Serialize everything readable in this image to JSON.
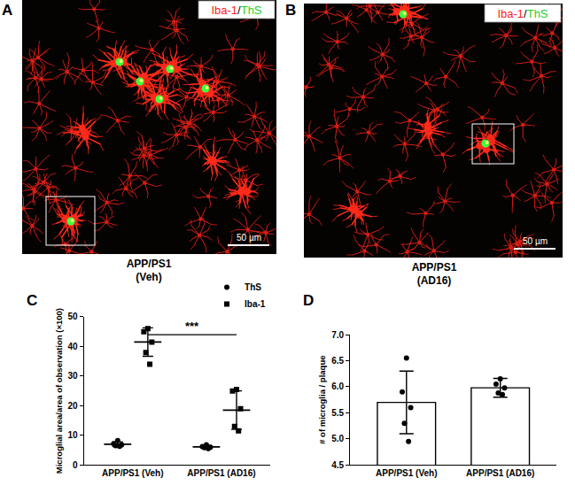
{
  "panels": [
    {
      "label": "A",
      "stain_label": [
        {
          "text": "Iba-1",
          "color": "#ff1a1a"
        },
        {
          "text": "/",
          "color": "#000000"
        },
        {
          "text": "ThS",
          "color": "#1fd11f"
        }
      ],
      "scale_bar": "50 µm",
      "caption": [
        "APP/PS1",
        "(Veh)"
      ]
    },
    {
      "label": "B",
      "stain_label": [
        {
          "text": "Iba-1",
          "color": "#ff1a1a"
        },
        {
          "text": "/",
          "color": "#000000"
        },
        {
          "text": "ThS",
          "color": "#1fd11f"
        }
      ],
      "scale_bar": "50 µm",
      "caption": [
        "APP/PS1",
        "(AD16)"
      ]
    }
  ],
  "chart_data": [
    {
      "panel": "C",
      "type": "scatter",
      "y_label": "Microglial area/area of observation (×100)",
      "categories": [
        "APP/PS1 (Veh)",
        "APP/PS1 (AD16)"
      ],
      "series": [
        {
          "name": "ThS",
          "marker": "circle",
          "color": "#000000",
          "values": [
            [
              8.2,
              7.2,
              6.8,
              6.5,
              6.3
            ],
            [
              6.8,
              6.2,
              6.0,
              5.8,
              5.5
            ]
          ],
          "mean": [
            7.0,
            6.1
          ],
          "sd": [
            0.8,
            0.5
          ]
        },
        {
          "name": "Iba-1",
          "marker": "square",
          "color": "#000000",
          "values": [
            [
              46,
              45,
              41.5,
              38,
              34
            ],
            [
              25.5,
              25,
              19,
              13,
              11.5
            ]
          ],
          "mean": [
            41.5,
            18.5
          ],
          "sd": [
            4.8,
            6.5
          ]
        }
      ],
      "ylim": [
        0,
        50
      ],
      "yticks": [
        0,
        10,
        20,
        30,
        40,
        50
      ],
      "legend": "upper right",
      "annotations": [
        {
          "text": "***",
          "from": "APP/PS1 (Veh)",
          "to": "APP/PS1 (AD16)",
          "series": "Iba-1",
          "y": 44
        }
      ]
    },
    {
      "panel": "D",
      "type": "bar",
      "y_label": "# of microglia / plaque",
      "categories": [
        "APP/PS1 (Veh)",
        "APP/PS1 (AD16)"
      ],
      "values": [
        5.7,
        5.98
      ],
      "sd": [
        0.6,
        0.18
      ],
      "points": [
        [
          6.55,
          5.9,
          5.6,
          5.3,
          4.95
        ],
        [
          6.15,
          6.05,
          5.98,
          5.88,
          5.85
        ]
      ],
      "color": "#ffffff",
      "ylim": [
        4.5,
        7.0
      ],
      "yticks": [
        4.5,
        {
          "value": 5,
          "label": "5.0"
        },
        5.5,
        {
          "value": 6,
          "label": "6.0"
        },
        6.5,
        {
          "value": 7,
          "label": "7.0"
        }
      ]
    }
  ]
}
